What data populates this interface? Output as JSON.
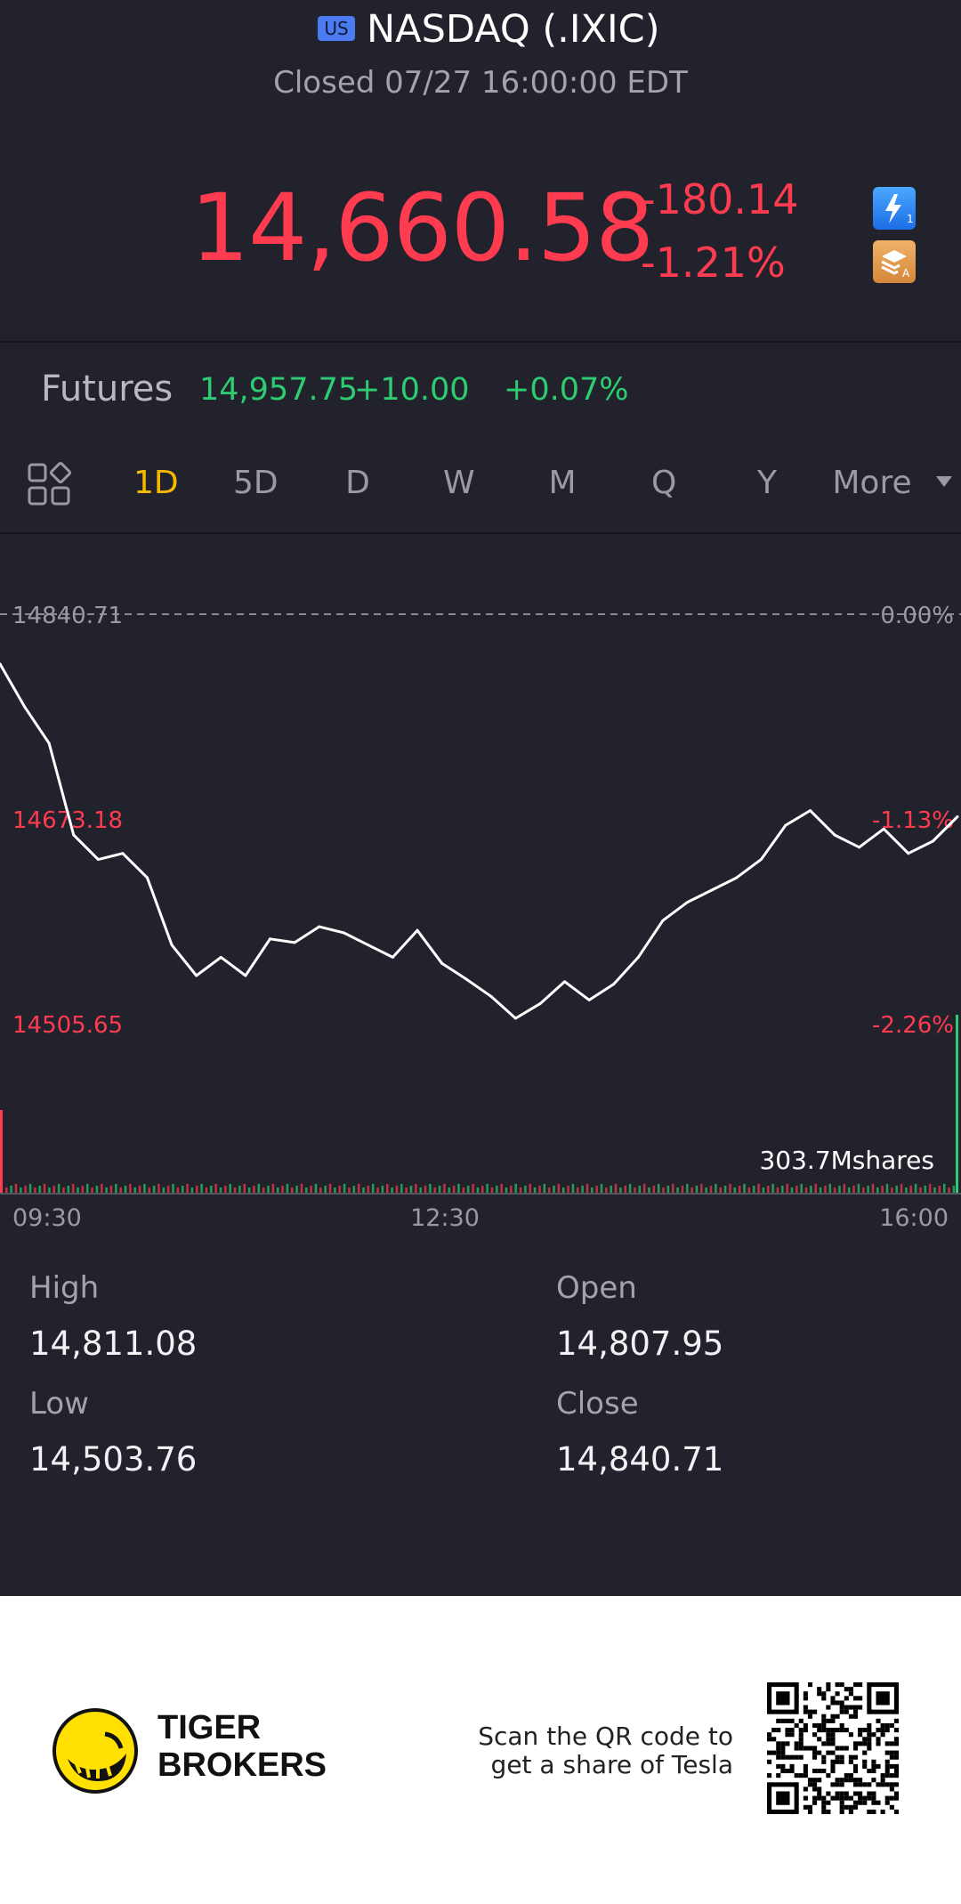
{
  "header": {
    "market_badge": "US",
    "title": "NASDAQ (.IXIC)",
    "status": "Closed 07/27 16:00:00 EDT"
  },
  "quote": {
    "price": "14,660.58",
    "change": "-180.14",
    "change_pct": "-1.21%",
    "color": "#ff3b50",
    "icons": [
      "lightning-icon",
      "layers-icon"
    ]
  },
  "futures": {
    "label": "Futures",
    "price": "14,957.75",
    "change": "+10.00",
    "change_pct": "+0.07%",
    "color": "#2ecc71"
  },
  "tabs": {
    "items": [
      "1D",
      "5D",
      "D",
      "W",
      "M",
      "Q",
      "Y",
      "More"
    ],
    "active": "1D"
  },
  "chart_data": {
    "type": "line",
    "title": "",
    "prev_close": 14840.71,
    "ylim": [
      14505.65,
      14840.71
    ],
    "y_ticks_left": [
      "14840.71",
      "14673.18",
      "14505.65"
    ],
    "y_ticks_right": [
      "0.00%",
      "-1.13%",
      "-2.26%"
    ],
    "x_ticks": [
      "09:30",
      "12:30",
      "16:00"
    ],
    "volume_label": "303.7Mshares",
    "series": [
      {
        "x": [
          "09:30",
          "09:40",
          "09:50",
          "10:00",
          "10:10",
          "10:20",
          "10:30",
          "10:40",
          "10:50",
          "11:00",
          "11:10",
          "11:20",
          "11:30",
          "11:40",
          "11:50",
          "12:00",
          "12:10",
          "12:20",
          "12:30",
          "12:40",
          "12:50",
          "13:00",
          "13:10",
          "13:20",
          "13:30",
          "13:40",
          "13:50",
          "14:00",
          "14:10",
          "14:20",
          "14:30",
          "14:40",
          "14:50",
          "15:00",
          "15:10",
          "15:20",
          "15:30",
          "15:40",
          "15:50",
          "16:00"
        ],
        "values": [
          14800,
          14765,
          14735,
          14660,
          14640,
          14645,
          14625,
          14570,
          14545,
          14560,
          14545,
          14575,
          14572,
          14585,
          14580,
          14570,
          14560,
          14582,
          14555,
          14542,
          14528,
          14510,
          14522,
          14540,
          14525,
          14538,
          14560,
          14590,
          14605,
          14615,
          14625,
          14640,
          14668,
          14680,
          14660,
          14650,
          14665,
          14645,
          14655,
          14675
        ]
      }
    ]
  },
  "stats": [
    {
      "label": "High",
      "value": "14,811.08"
    },
    {
      "label": "Open",
      "value": "14,807.95"
    },
    {
      "label": "Low",
      "value": "14,503.76"
    },
    {
      "label": "Close",
      "value": "14,840.71"
    }
  ],
  "footer": {
    "brand_line1": "TIGER",
    "brand_line2": "BROKERS",
    "qr_line1": "Scan the QR code to",
    "qr_line2": "get a share of Tesla"
  }
}
